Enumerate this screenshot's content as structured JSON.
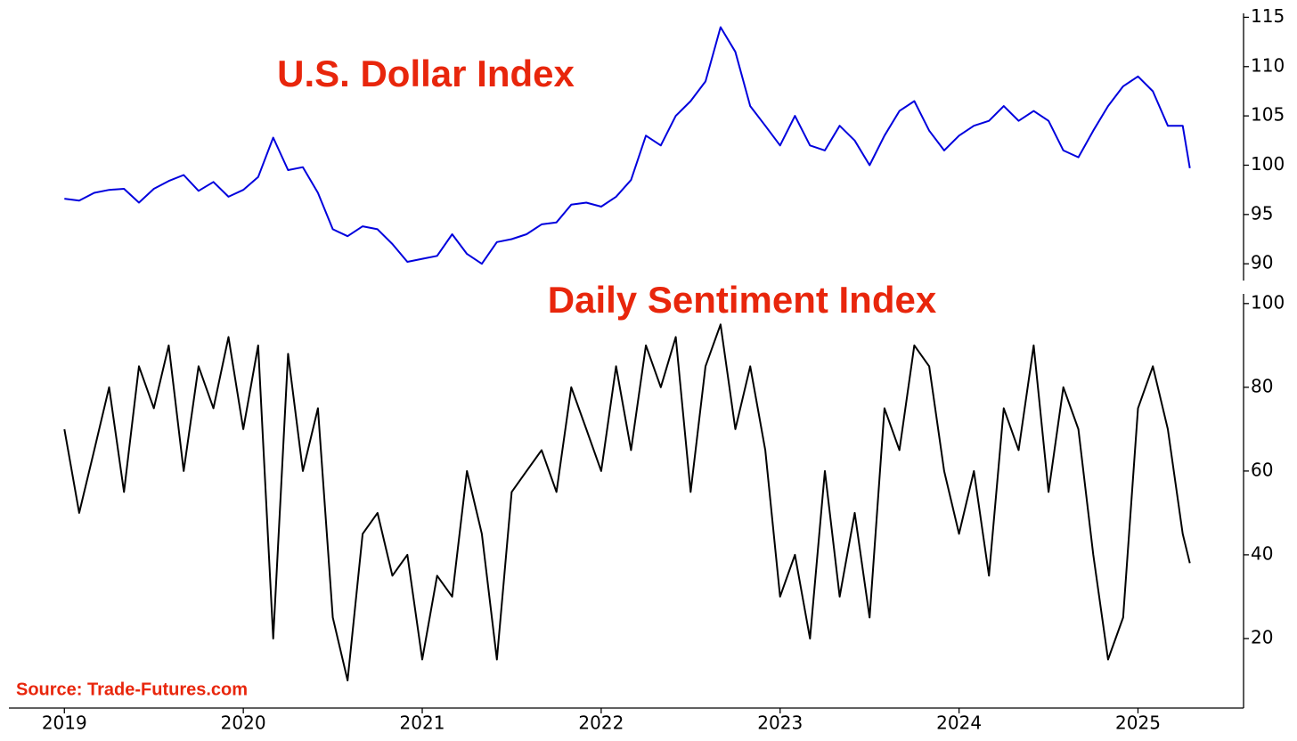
{
  "chart_data": [
    {
      "type": "line",
      "title": "U.S. Dollar Index",
      "xlim": [
        2018.69,
        2025.59
      ],
      "ylim": [
        88.3,
        115.4
      ],
      "yticks": [
        90,
        95,
        100,
        105,
        110,
        115
      ],
      "series": [
        {
          "color": "#0000dd",
          "x": [
            2019,
            2019.083,
            2019.167,
            2019.25,
            2019.333,
            2019.417,
            2019.5,
            2019.583,
            2019.667,
            2019.75,
            2019.833,
            2019.917,
            2020,
            2020.083,
            2020.167,
            2020.25,
            2020.333,
            2020.417,
            2020.5,
            2020.583,
            2020.667,
            2020.75,
            2020.833,
            2020.917,
            2021,
            2021.083,
            2021.167,
            2021.25,
            2021.333,
            2021.417,
            2021.5,
            2021.583,
            2021.667,
            2021.75,
            2021.833,
            2021.917,
            2022,
            2022.083,
            2022.167,
            2022.25,
            2022.333,
            2022.417,
            2022.5,
            2022.583,
            2022.667,
            2022.75,
            2022.833,
            2022.917,
            2023,
            2023.083,
            2023.167,
            2023.25,
            2023.333,
            2023.417,
            2023.5,
            2023.583,
            2023.667,
            2023.75,
            2023.833,
            2023.917,
            2024,
            2024.083,
            2024.167,
            2024.25,
            2024.333,
            2024.417,
            2024.5,
            2024.583,
            2024.667,
            2024.75,
            2024.833,
            2024.917,
            2025,
            2025.083,
            2025.167,
            2025.25,
            2025.29
          ],
          "values": [
            96.6,
            96.4,
            97.2,
            97.5,
            97.6,
            96.2,
            97.6,
            98.4,
            99.0,
            97.4,
            98.3,
            96.8,
            97.5,
            98.8,
            102.8,
            99.5,
            99.8,
            97.2,
            93.5,
            92.8,
            93.8,
            93.5,
            92.0,
            90.2,
            90.5,
            90.8,
            93.0,
            91.0,
            90.0,
            92.2,
            92.5,
            93.0,
            94.0,
            94.2,
            96.0,
            96.2,
            95.8,
            96.8,
            98.5,
            103.0,
            102.0,
            105.0,
            106.5,
            108.5,
            114.0,
            111.5,
            106.0,
            104.0,
            102.0,
            105.0,
            102.0,
            101.5,
            104.0,
            102.5,
            100.0,
            103.0,
            105.5,
            106.5,
            103.5,
            101.5,
            103.0,
            104.0,
            104.5,
            106.0,
            104.5,
            105.5,
            104.5,
            101.5,
            100.8,
            103.5,
            106.0,
            108.0,
            109.0,
            107.5,
            104.0,
            104.0,
            99.7
          ]
        }
      ]
    },
    {
      "type": "line",
      "title": "Daily Sentiment Index",
      "source": "Source: Trade-Futures.com",
      "xlim": [
        2018.69,
        2025.59
      ],
      "xticks": [
        2019,
        2020,
        2021,
        2022,
        2023,
        2024,
        2025
      ],
      "ylim": [
        3.4,
        102.3
      ],
      "yticks": [
        20,
        40,
        60,
        80,
        100
      ],
      "series": [
        {
          "color": "#000000",
          "x": [
            2019,
            2019.083,
            2019.167,
            2019.25,
            2019.333,
            2019.417,
            2019.5,
            2019.583,
            2019.667,
            2019.75,
            2019.833,
            2019.917,
            2020,
            2020.083,
            2020.167,
            2020.25,
            2020.333,
            2020.417,
            2020.5,
            2020.583,
            2020.667,
            2020.75,
            2020.833,
            2020.917,
            2021,
            2021.083,
            2021.167,
            2021.25,
            2021.333,
            2021.417,
            2021.5,
            2021.583,
            2021.667,
            2021.75,
            2021.833,
            2021.917,
            2022,
            2022.083,
            2022.167,
            2022.25,
            2022.333,
            2022.417,
            2022.5,
            2022.583,
            2022.667,
            2022.75,
            2022.833,
            2022.917,
            2023,
            2023.083,
            2023.167,
            2023.25,
            2023.333,
            2023.417,
            2023.5,
            2023.583,
            2023.667,
            2023.75,
            2023.833,
            2023.917,
            2024,
            2024.083,
            2024.167,
            2024.25,
            2024.333,
            2024.417,
            2024.5,
            2024.583,
            2024.667,
            2024.75,
            2024.833,
            2024.917,
            2025,
            2025.083,
            2025.167,
            2025.25,
            2025.29
          ],
          "values": [
            70,
            50,
            65,
            80,
            55,
            85,
            75,
            90,
            60,
            85,
            75,
            92,
            70,
            90,
            20,
            88,
            60,
            75,
            25,
            10,
            45,
            50,
            35,
            40,
            15,
            35,
            30,
            60,
            45,
            15,
            55,
            60,
            65,
            55,
            80,
            70,
            60,
            85,
            65,
            90,
            80,
            92,
            55,
            85,
            95,
            70,
            85,
            65,
            30,
            40,
            20,
            60,
            30,
            50,
            25,
            75,
            65,
            90,
            85,
            60,
            45,
            60,
            35,
            75,
            65,
            90,
            55,
            80,
            70,
            40,
            15,
            25,
            75,
            85,
            70,
            45,
            38
          ]
        }
      ]
    }
  ]
}
